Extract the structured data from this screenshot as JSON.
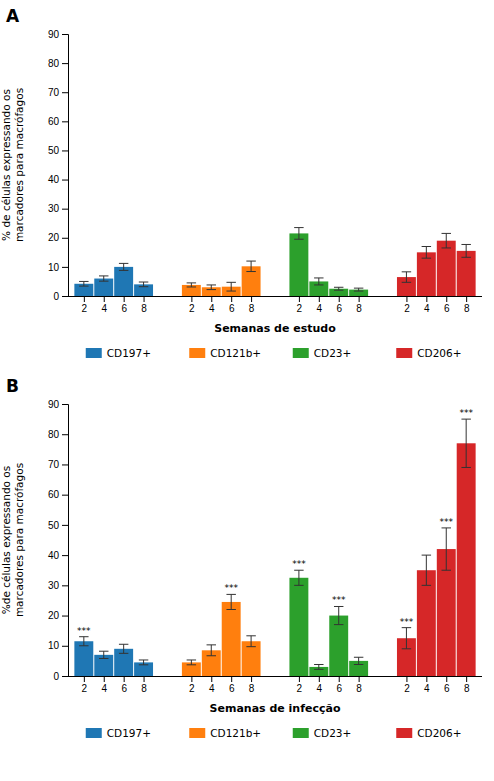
{
  "chart_data": [
    {
      "type": "bar",
      "title": "A",
      "xlabel": "Semanas de estudo",
      "ylabel": "% de células expressando os\nmarcadores para macrófagos",
      "categories": [
        "2",
        "4",
        "6",
        "8"
      ],
      "series": [
        {
          "name": "CD197+",
          "values": [
            4.2,
            6.0,
            10.0,
            4.0
          ],
          "errors": [
            0.8,
            0.9,
            1.2,
            0.8
          ]
        },
        {
          "name": "CD121b+",
          "values": [
            3.8,
            3.0,
            3.2,
            10.2
          ],
          "errors": [
            0.7,
            0.8,
            1.5,
            1.8
          ]
        },
        {
          "name": "CD23+",
          "values": [
            21.5,
            5.0,
            2.5,
            2.2
          ],
          "errors": [
            2.0,
            1.2,
            0.5,
            0.5
          ]
        },
        {
          "name": "CD206+",
          "values": [
            6.5,
            15.0,
            19.0,
            15.5
          ],
          "errors": [
            1.8,
            2.0,
            2.5,
            2.2
          ]
        }
      ],
      "ylim": [
        0,
        90
      ],
      "yticks": [
        0,
        10,
        20,
        30,
        40,
        50,
        60,
        70,
        80,
        90
      ],
      "grid": false,
      "legend": "bottom"
    },
    {
      "type": "bar",
      "title": "B",
      "xlabel": "Semanas de infecção",
      "ylabel": "%de células expressando os\nmarcadores para macrófagos",
      "categories": [
        "2",
        "4",
        "6",
        "8"
      ],
      "series": [
        {
          "name": "CD197+",
          "values": [
            11.5,
            7.0,
            9.0,
            4.5
          ],
          "errors": [
            1.5,
            1.2,
            1.5,
            0.8
          ],
          "significance": [
            "***",
            null,
            null,
            null
          ]
        },
        {
          "name": "CD121b+",
          "values": [
            4.5,
            8.5,
            24.5,
            11.5
          ],
          "errors": [
            0.8,
            1.8,
            2.5,
            1.8
          ],
          "significance": [
            null,
            null,
            "***",
            null
          ]
        },
        {
          "name": "CD23+",
          "values": [
            32.5,
            3.0,
            20.0,
            5.0
          ],
          "errors": [
            2.5,
            0.8,
            3.0,
            1.2
          ],
          "significance": [
            "***",
            null,
            "***",
            null
          ]
        },
        {
          "name": "CD206+",
          "values": [
            12.5,
            35.0,
            42.0,
            77.0
          ],
          "errors": [
            3.5,
            5.0,
            7.0,
            8.0
          ],
          "significance": [
            "***",
            null,
            "***",
            "***"
          ]
        }
      ],
      "ylim": [
        0,
        90
      ],
      "yticks": [
        0,
        10,
        20,
        30,
        40,
        50,
        60,
        70,
        80,
        90
      ],
      "grid": false,
      "legend": "bottom"
    }
  ]
}
